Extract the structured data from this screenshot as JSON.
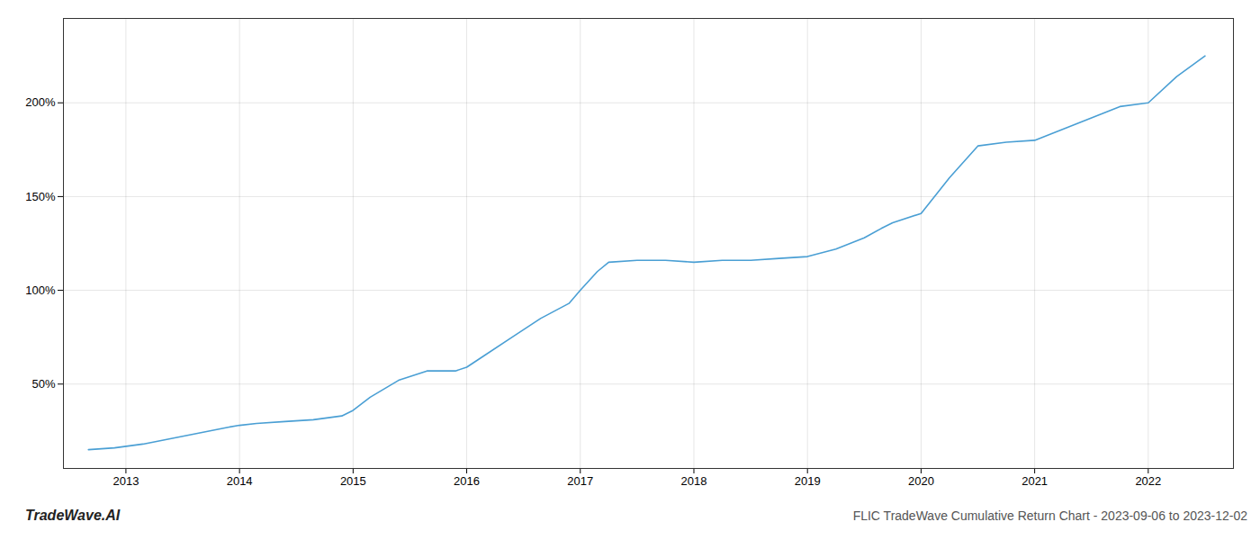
{
  "chart_data": {
    "type": "line",
    "title": "FLIC TradeWave Cumulative Return Chart - 2023-09-06 to 2023-12-02",
    "annotations": [
      "TradeWave.AI"
    ],
    "color": "#4a9fd4",
    "x": [
      2012.67,
      2012.9,
      2013.15,
      2013.4,
      2013.65,
      2013.9,
      2014.0,
      2014.15,
      2014.4,
      2014.65,
      2014.9,
      2015.0,
      2015.15,
      2015.4,
      2015.65,
      2015.9,
      2016.0,
      2016.15,
      2016.4,
      2016.65,
      2016.9,
      2017.0,
      2017.15,
      2017.25,
      2017.5,
      2017.75,
      2018.0,
      2018.25,
      2018.5,
      2018.75,
      2019.0,
      2019.25,
      2019.5,
      2019.65,
      2019.75,
      2020.0,
      2020.25,
      2020.5,
      2020.75,
      2021.0,
      2021.25,
      2021.5,
      2021.75,
      2022.0,
      2022.25,
      2022.5
    ],
    "values": [
      15,
      16,
      18,
      21,
      24,
      27,
      28,
      29,
      30,
      31,
      33,
      36,
      43,
      52,
      57,
      57,
      59,
      65,
      75,
      85,
      93,
      100,
      110,
      115,
      116,
      116,
      115,
      116,
      116,
      117,
      118,
      122,
      128,
      133,
      136,
      141,
      160,
      177,
      179,
      180,
      186,
      192,
      198,
      200,
      214,
      225
    ],
    "xlim": [
      2012.45,
      2022.75
    ],
    "xticks": [
      2013,
      2014,
      2015,
      2016,
      2017,
      2018,
      2019,
      2020,
      2021,
      2022
    ],
    "ylim": [
      5,
      245
    ],
    "yticks": [
      {
        "value": 50,
        "label": "50%"
      },
      {
        "value": 100,
        "label": "100%"
      },
      {
        "value": 150,
        "label": "150%"
      },
      {
        "value": 200,
        "label": "200%"
      }
    ],
    "grid": true
  }
}
